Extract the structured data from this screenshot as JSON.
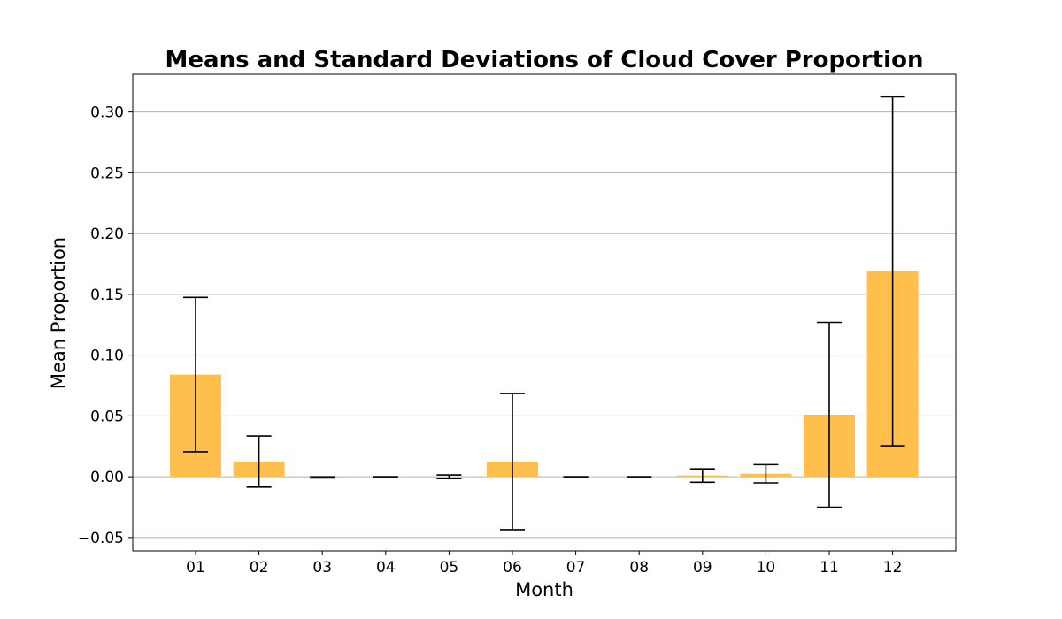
{
  "chart_data": {
    "type": "bar",
    "title": "Means and Standard Deviations of Cloud Cover Proportion",
    "xlabel": "Month",
    "ylabel": "Mean Proportion",
    "categories": [
      "01",
      "02",
      "03",
      "04",
      "05",
      "06",
      "07",
      "08",
      "09",
      "10",
      "11",
      "12"
    ],
    "values": [
      0.084,
      0.0125,
      -0.0005,
      0.0,
      0.0,
      0.0125,
      0.0,
      0.0,
      0.001,
      0.0025,
      0.051,
      0.169
    ],
    "std": [
      0.0635,
      0.021,
      0.0005,
      0.0,
      0.0015,
      0.056,
      0.0,
      0.0,
      0.0055,
      0.0075,
      0.076,
      0.1435
    ],
    "ylim": [
      -0.061,
      0.331
    ],
    "yticks": [
      "-0.05",
      "0.00",
      "0.05",
      "0.10",
      "0.15",
      "0.20",
      "0.25",
      "0.30"
    ],
    "grid": "horizontal",
    "colors": {
      "bar": "#ffbf4d",
      "error": "#000000",
      "grid": "#b0b0b0"
    }
  }
}
